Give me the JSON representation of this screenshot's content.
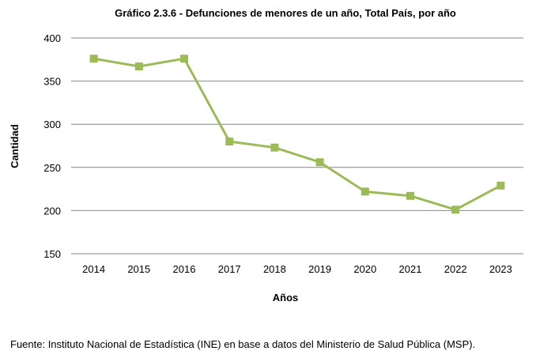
{
  "chart_data": {
    "type": "line",
    "title": "Gráfico 2.3.6 - Defunciones de menores de un año, Total País, por año",
    "xlabel": "Años",
    "ylabel": "Cantidad",
    "categories": [
      "2014",
      "2015",
      "2016",
      "2017",
      "2018",
      "2019",
      "2020",
      "2021",
      "2022",
      "2023"
    ],
    "series": [
      {
        "values": [
          376,
          367,
          376,
          280,
          273,
          256,
          222,
          217,
          201,
          229
        ]
      }
    ],
    "ylim": [
      150,
      400
    ],
    "yticks": [
      150,
      200,
      250,
      300,
      350,
      400
    ],
    "grid": true,
    "legend": "none",
    "colors": {
      "line": "#9bbb59",
      "marker": "#9bbb59",
      "grid": "#868686"
    }
  },
  "source": "Fuente: Instituto Nacional de Estadística (INE) en base a datos del Ministerio de Salud Pública (MSP)."
}
